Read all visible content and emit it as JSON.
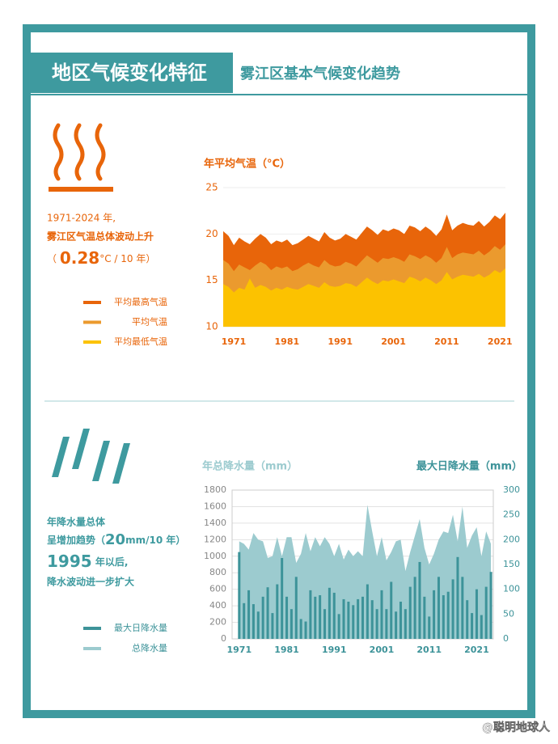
{
  "header": {
    "title": "地区气候变化特征",
    "subtitle": "雾江区基本气候变化趋势"
  },
  "temp_note": {
    "lines": [
      "1971-2024 年,",
      "雾江区气温总体波动上升"
    ],
    "open": "（ ",
    "rate": "0.28",
    "unit": "°C / 10 年）"
  },
  "rain_note": {
    "line1": "年降水量总体",
    "line2_start": "呈增加趋势（",
    "rate": "20",
    "line2_end": "mm/10 年）",
    "year": "1995",
    "line3_end": " 年以后,",
    "line4": "降水波动进一步扩大"
  },
  "watermark": "@聪明地球人",
  "chart_data": [
    {
      "type": "area",
      "title": "年平均气温（°C）",
      "x": [
        1971,
        1972,
        1973,
        1974,
        1975,
        1976,
        1977,
        1978,
        1979,
        1980,
        1981,
        1982,
        1983,
        1984,
        1985,
        1986,
        1987,
        1988,
        1989,
        1990,
        1991,
        1992,
        1993,
        1994,
        1995,
        1996,
        1997,
        1998,
        1999,
        2000,
        2001,
        2002,
        2003,
        2004,
        2005,
        2006,
        2007,
        2008,
        2009,
        2010,
        2011,
        2012,
        2013,
        2014,
        2015,
        2016,
        2017,
        2018,
        2019,
        2020,
        2021,
        2022,
        2023,
        2024
      ],
      "xlim": [
        1971,
        2024
      ],
      "xticks": [
        1971,
        1981,
        1991,
        2001,
        2011,
        2021
      ],
      "ylim": [
        10,
        25
      ],
      "yticks": [
        10,
        15,
        20,
        25
      ],
      "grid": true,
      "series": [
        {
          "name": "平均最高气温",
          "color": "#e8650a",
          "values": [
            20.3,
            19.8,
            18.8,
            19.6,
            19.2,
            18.9,
            19.5,
            20.0,
            19.6,
            18.9,
            19.3,
            19.1,
            19.4,
            18.8,
            19.0,
            19.4,
            19.8,
            19.5,
            19.2,
            20.2,
            19.6,
            19.3,
            19.5,
            20.0,
            19.7,
            19.4,
            20.1,
            20.8,
            20.4,
            19.9,
            20.5,
            20.3,
            20.6,
            20.4,
            20.0,
            20.9,
            20.7,
            20.3,
            20.8,
            20.4,
            19.8,
            20.5,
            22.1,
            20.4,
            20.9,
            21.2,
            21.0,
            20.9,
            21.4,
            20.8,
            21.3,
            22.0,
            21.6,
            22.3
          ]
        },
        {
          "name": "平均气温",
          "color": "#eb9a2e",
          "values": [
            17.2,
            16.8,
            16.0,
            16.7,
            16.4,
            16.1,
            16.6,
            17.0,
            16.7,
            16.1,
            16.5,
            16.3,
            16.5,
            16.0,
            16.2,
            16.6,
            16.9,
            16.6,
            16.4,
            17.2,
            16.7,
            16.5,
            16.6,
            17.0,
            16.8,
            16.5,
            17.1,
            17.7,
            17.3,
            16.9,
            17.4,
            17.3,
            17.5,
            17.3,
            17.0,
            17.8,
            17.6,
            17.3,
            17.7,
            17.4,
            16.9,
            17.4,
            18.6,
            17.4,
            17.8,
            18.0,
            17.9,
            17.8,
            18.2,
            17.7,
            18.1,
            18.7,
            18.3,
            18.9
          ]
        },
        {
          "name": "平均最低气温",
          "color": "#fcc200",
          "values": [
            14.6,
            14.3,
            13.7,
            14.2,
            14.0,
            15.2,
            14.2,
            14.5,
            14.3,
            13.9,
            14.2,
            14.0,
            14.3,
            14.1,
            14.0,
            14.3,
            14.6,
            14.4,
            14.2,
            14.8,
            14.4,
            14.3,
            14.4,
            14.7,
            14.6,
            14.3,
            14.8,
            15.3,
            14.9,
            14.6,
            15.0,
            14.9,
            15.1,
            14.9,
            14.7,
            15.4,
            15.2,
            14.9,
            15.3,
            15.0,
            14.6,
            15.0,
            15.9,
            15.1,
            15.4,
            15.6,
            15.5,
            15.4,
            15.7,
            15.3,
            15.6,
            16.1,
            15.8,
            16.3
          ]
        }
      ]
    },
    {
      "type": "bar",
      "y_label": "年总降水量（mm）",
      "y2_label": "最大日降水量（mm）",
      "x": [
        1971,
        1972,
        1973,
        1974,
        1975,
        1976,
        1977,
        1978,
        1979,
        1980,
        1981,
        1982,
        1983,
        1984,
        1985,
        1986,
        1987,
        1988,
        1989,
        1990,
        1991,
        1992,
        1993,
        1994,
        1995,
        1996,
        1997,
        1998,
        1999,
        2000,
        2001,
        2002,
        2003,
        2004,
        2005,
        2006,
        2007,
        2008,
        2009,
        2010,
        2011,
        2012,
        2013,
        2014,
        2015,
        2016,
        2017,
        2018,
        2019,
        2020,
        2021,
        2022,
        2023,
        2024
      ],
      "xlim": [
        1969.5,
        2024.5
      ],
      "xticks": [
        1971,
        1981,
        1991,
        2001,
        2011,
        2021
      ],
      "ylim": [
        0,
        1800
      ],
      "yticks": [
        0,
        200,
        400,
        600,
        800,
        1000,
        1200,
        1400,
        1600,
        1800
      ],
      "y2lim": [
        0,
        300
      ],
      "y2ticks": [
        0,
        50,
        100,
        150,
        200,
        250,
        300
      ],
      "grid": true,
      "series": [
        {
          "name": "最大日降水量",
          "type": "bar",
          "axis": "y2",
          "color": "#3d9399",
          "values": [
            175,
            72,
            98,
            70,
            55,
            85,
            104,
            52,
            110,
            163,
            85,
            60,
            125,
            40,
            35,
            98,
            85,
            88,
            60,
            103,
            93,
            50,
            80,
            75,
            68,
            80,
            85,
            110,
            78,
            60,
            98,
            60,
            115,
            55,
            75,
            60,
            105,
            125,
            155,
            85,
            45,
            98,
            125,
            88,
            95,
            120,
            165,
            125,
            78,
            52,
            100,
            48,
            105,
            135
          ]
        },
        {
          "name": "总降水量",
          "type": "area",
          "color": "#9ccbcf",
          "values": [
            1180,
            1150,
            1080,
            1280,
            1200,
            1180,
            980,
            1000,
            1230,
            1000,
            1230,
            1230,
            920,
            1030,
            1280,
            1060,
            1230,
            1120,
            1230,
            1150,
            1000,
            1150,
            960,
            1080,
            1000,
            1060,
            1000,
            1620,
            1300,
            1000,
            1230,
            950,
            1050,
            1180,
            1200,
            820,
            1050,
            1250,
            1450,
            1100,
            900,
            1030,
            1200,
            1300,
            1280,
            1500,
            1180,
            1600,
            1100,
            1250,
            1350,
            1000,
            1300,
            1150
          ]
        }
      ]
    }
  ]
}
